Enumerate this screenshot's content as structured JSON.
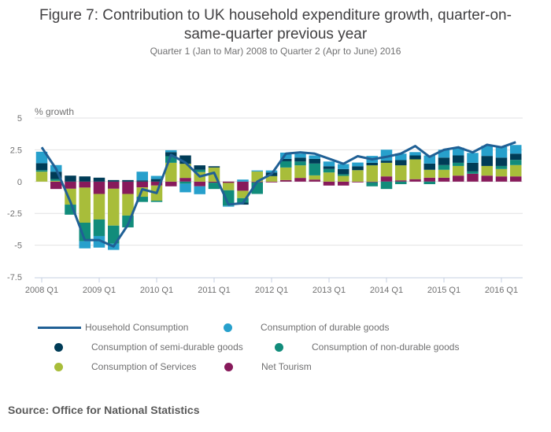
{
  "title": "Figure 7: Contribution to UK household expenditure growth, quarter-on-same-quarter previous year",
  "title_line1": "Figure 7: Contribution to UK household expenditure growth, quarter-on-",
  "title_line2": "same-quarter previous year",
  "subtitle": "Quarter 1 (Jan to Mar) 2008 to Quarter 2 (Apr to June) 2016",
  "source": "Source: Office for National Statistics",
  "colors": {
    "line": "#206095",
    "durable": "#27a0cc",
    "semi_durable": "#003c57",
    "non_durable": "#118c7b",
    "services": "#a8bd3a",
    "tourism": "#871a5b"
  },
  "legend": [
    {
      "key": "line",
      "label": "Household Consumption"
    },
    {
      "key": "durable",
      "label": "Consumption of durable goods"
    },
    {
      "key": "semi_durable",
      "label": "Consumption of semi-durable goods"
    },
    {
      "key": "non_durable",
      "label": "Consumption of non-durable goods"
    },
    {
      "key": "services",
      "label": "Consumption of Services"
    },
    {
      "key": "tourism",
      "label": "Net Tourism"
    }
  ],
  "chart_data": {
    "type": "bar",
    "stacked": true,
    "title": "Figure 7: Contribution to UK household expenditure growth, quarter-on-same-quarter previous year",
    "subtitle": "Quarter 1 (Jan to Mar) 2008 to Quarter 2 (Apr to June) 2016",
    "xlabel": "",
    "ylabel": "% growth",
    "ylim": [
      -7.5,
      5
    ],
    "yticks": [
      5,
      2.5,
      0,
      -2.5,
      -5,
      -7.5
    ],
    "ytick_labels": [
      "5",
      "2.5",
      "0",
      "-2.5",
      "-5",
      "-7.5"
    ],
    "xtick_labels": [
      "2008 Q1",
      "2009 Q1",
      "2010 Q1",
      "2011 Q1",
      "2012 Q1",
      "2013 Q1",
      "2014 Q1",
      "2015 Q1",
      "2016 Q1"
    ],
    "grid": true,
    "legend_position": "bottom",
    "categories": [
      "2008 Q1",
      "2008 Q2",
      "2008 Q3",
      "2008 Q4",
      "2009 Q1",
      "2009 Q2",
      "2009 Q3",
      "2009 Q4",
      "2010 Q1",
      "2010 Q2",
      "2010 Q3",
      "2010 Q4",
      "2011 Q1",
      "2011 Q2",
      "2011 Q3",
      "2011 Q4",
      "2012 Q1",
      "2012 Q2",
      "2012 Q3",
      "2012 Q4",
      "2013 Q1",
      "2013 Q2",
      "2013 Q3",
      "2013 Q4",
      "2014 Q1",
      "2014 Q2",
      "2014 Q3",
      "2014 Q4",
      "2015 Q1",
      "2015 Q2",
      "2015 Q3",
      "2015 Q4",
      "2016 Q1",
      "2016 Q2"
    ],
    "series": [
      {
        "name": "Net Tourism",
        "key": "tourism",
        "type": "bar",
        "values": [
          0,
          -0.58,
          -0.56,
          -0.47,
          -0.97,
          -0.56,
          -0.97,
          -0.45,
          -0.31,
          -0.37,
          0.29,
          -0.37,
          -0.08,
          -0.1,
          -0.72,
          -0.06,
          -0.06,
          0.12,
          0.29,
          0.16,
          -0.31,
          -0.31,
          -0.06,
          -0.05,
          0.41,
          0.1,
          0.19,
          0.31,
          0.31,
          0.47,
          0.62,
          0.47,
          0.41,
          0.41
        ]
      },
      {
        "name": "Consumption of Services",
        "key": "services",
        "type": "bar",
        "values": [
          0.78,
          0.06,
          -1.25,
          -2.76,
          -2.01,
          -2.9,
          -1.7,
          -0.74,
          -1.19,
          1.48,
          1.11,
          0.75,
          1.11,
          -0.58,
          -0.58,
          0.8,
          0.43,
          0.99,
          0.99,
          0.33,
          0.72,
          0.45,
          0.9,
          1.28,
          1.07,
          1.18,
          1.56,
          0.62,
          0.62,
          0.76,
          0,
          0.76,
          0.58,
          0.89
        ]
      },
      {
        "name": "Consumption of non-durable goods",
        "key": "non_durable",
        "type": "bar",
        "values": [
          0.12,
          0.14,
          -0.79,
          -1.46,
          -1.3,
          -1.42,
          -0.93,
          -0.41,
          -0.1,
          0.52,
          -0.16,
          0.18,
          -0.5,
          -1.21,
          -0.35,
          -0.91,
          0,
          0.49,
          0.3,
          0.93,
          0.27,
          0.13,
          0,
          -0.32,
          -0.58,
          -0.2,
          0,
          -0.2,
          0.37,
          0.25,
          0.18,
          0,
          0.24,
          0.41
        ]
      },
      {
        "name": "Consumption of semi-durable goods",
        "key": "semi_durable",
        "type": "bar",
        "values": [
          0.55,
          0.58,
          0.47,
          0.41,
          0.31,
          0.12,
          0.12,
          0.1,
          0.2,
          0.32,
          0.66,
          0.35,
          0.1,
          0,
          -0.16,
          0,
          0.29,
          0.19,
          0.31,
          0.37,
          0.22,
          0.41,
          0.31,
          0.2,
          0.17,
          0.41,
          0.31,
          0.49,
          0.59,
          0.58,
          0.68,
          0.79,
          0.66,
          0.49
        ]
      },
      {
        "name": "Consumption of durable goods",
        "key": "durable",
        "type": "bar",
        "values": [
          0.9,
          0.52,
          0,
          -0.56,
          -0.91,
          -0.49,
          0,
          0.68,
          0.25,
          0.15,
          -0.68,
          -0.62,
          0,
          -0.08,
          0.16,
          0.08,
          0.16,
          0.49,
          0.31,
          0.27,
          0.37,
          0.39,
          0.29,
          0.54,
          0.86,
          0.51,
          0.26,
          0.64,
          0.62,
          0.61,
          0.78,
          0.8,
          0.85,
          0.68
        ]
      },
      {
        "name": "Household Consumption",
        "key": "line",
        "type": "line",
        "values": [
          2.7,
          1.0,
          -1.6,
          -4.6,
          -4.6,
          -5.1,
          -3.4,
          -0.6,
          -0.9,
          2.1,
          1.5,
          0.4,
          0.7,
          -1.8,
          -1.7,
          0.0,
          0.6,
          2.2,
          2.3,
          2.2,
          1.8,
          1.4,
          2.0,
          1.75,
          1.95,
          2.2,
          2.8,
          1.95,
          2.5,
          2.7,
          2.3,
          2.9,
          2.7,
          3.1
        ]
      }
    ]
  }
}
